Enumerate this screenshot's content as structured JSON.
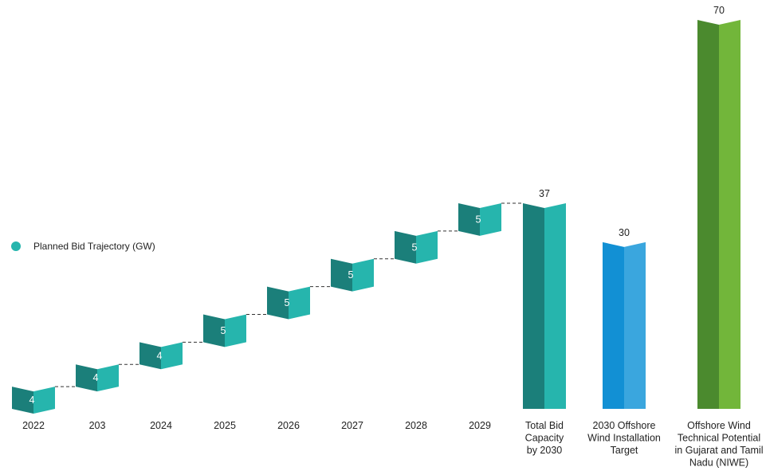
{
  "chart_data": {
    "type": "bar",
    "title": "",
    "xlabel": "",
    "ylabel": "",
    "ylim": [
      0,
      70
    ],
    "legend": {
      "label": "Planned Bid Trajectory (GW)",
      "color": "#26b5ad",
      "position": "middle-left"
    },
    "steps": [
      {
        "label": "2022",
        "value": 4
      },
      {
        "label": "203",
        "value": 4
      },
      {
        "label": "2024",
        "value": 4
      },
      {
        "label": "2025",
        "value": 5
      },
      {
        "label": "2026",
        "value": 5
      },
      {
        "label": "2027",
        "value": 5
      },
      {
        "label": "2028",
        "value": 5
      },
      {
        "label": "2029",
        "value": 5
      }
    ],
    "totals": [
      {
        "label_lines": [
          "Total Bid",
          "Capacity",
          "by 2030"
        ],
        "value": 37,
        "front": "#1b7f7a",
        "side": "#26b5ad"
      },
      {
        "label_lines": [
          "2030 Offshore",
          "Wind Installation",
          "Target"
        ],
        "value": 30,
        "front": "#1290d4",
        "side": "#3aa6de"
      },
      {
        "label_lines": [
          "Offshore Wind",
          "Technical Potential",
          "in Gujarat and Tamil",
          "Nadu (NIWE)"
        ],
        "value": 70,
        "front": "#4b8a2e",
        "side": "#72b63a"
      }
    ],
    "colors": {
      "step_front": "#1b7f7a",
      "step_side": "#26b5ad",
      "connector": "#333333"
    }
  }
}
